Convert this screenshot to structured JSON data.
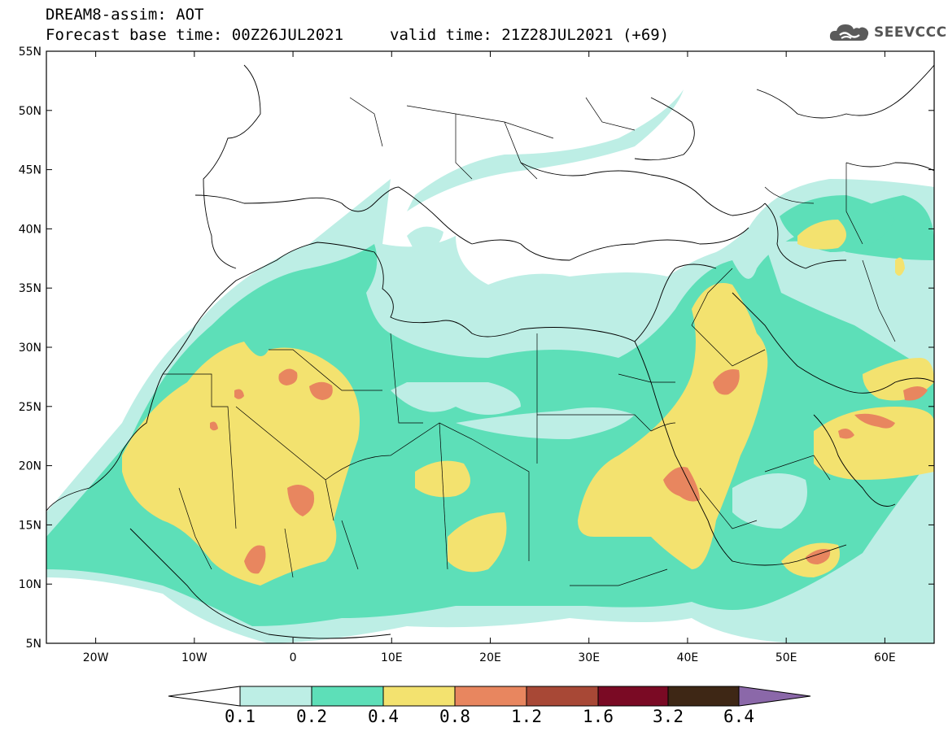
{
  "header": {
    "title": "DREAM8-assim: AOT",
    "base_time": "Forecast base time: 00Z26JUL2021",
    "valid_time": "valid time: 21Z28JUL2021 (+69)"
  },
  "logo": {
    "text": "SEEVCCC",
    "icon": "cloud-icon"
  },
  "map": {
    "projection": "cylindrical lat-lon",
    "lon_range": [
      -25,
      65
    ],
    "lat_range": [
      5,
      55
    ],
    "lon_ticks": [
      {
        "value": -20,
        "label": "20W"
      },
      {
        "value": -10,
        "label": "10W"
      },
      {
        "value": 0,
        "label": "0"
      },
      {
        "value": 10,
        "label": "10E"
      },
      {
        "value": 20,
        "label": "20E"
      },
      {
        "value": 30,
        "label": "30E"
      },
      {
        "value": 40,
        "label": "40E"
      },
      {
        "value": 50,
        "label": "50E"
      },
      {
        "value": 60,
        "label": "60E"
      }
    ],
    "lat_ticks": [
      {
        "value": 55,
        "label": "55N"
      },
      {
        "value": 50,
        "label": "50N"
      },
      {
        "value": 45,
        "label": "45N"
      },
      {
        "value": 40,
        "label": "40N"
      },
      {
        "value": 35,
        "label": "35N"
      },
      {
        "value": 30,
        "label": "30N"
      },
      {
        "value": 25,
        "label": "25N"
      },
      {
        "value": 20,
        "label": "20N"
      },
      {
        "value": 15,
        "label": "15N"
      },
      {
        "value": 10,
        "label": "10N"
      },
      {
        "value": 5,
        "label": "5N"
      }
    ],
    "aot_levels": [
      {
        "name": "0.1-0.2",
        "color": "#bdeee5"
      },
      {
        "name": "0.2-0.4",
        "color": "#5ddfb8"
      },
      {
        "name": "0.4-0.8",
        "color": "#f3e26f"
      },
      {
        "name": "0.8-1.2",
        "color": "#e8865f"
      },
      {
        "name": "1.2-1.6",
        "color": "#a84836"
      },
      {
        "name": "1.6-3.2",
        "color": "#7a0a24"
      },
      {
        "name": "3.2-6.4",
        "color": "#3e2715"
      },
      {
        "name": ">6.4",
        "color": "#8b68a9"
      }
    ]
  },
  "colorbar": {
    "labels": [
      "0.1",
      "0.2",
      "0.4",
      "0.8",
      "1.2",
      "1.6",
      "3.2",
      "6.4"
    ],
    "colors": [
      "#ffffff",
      "#bdeee5",
      "#5ddfb8",
      "#f3e26f",
      "#e8865f",
      "#a84836",
      "#7a0a24",
      "#3e2715",
      "#8b68a9"
    ]
  }
}
